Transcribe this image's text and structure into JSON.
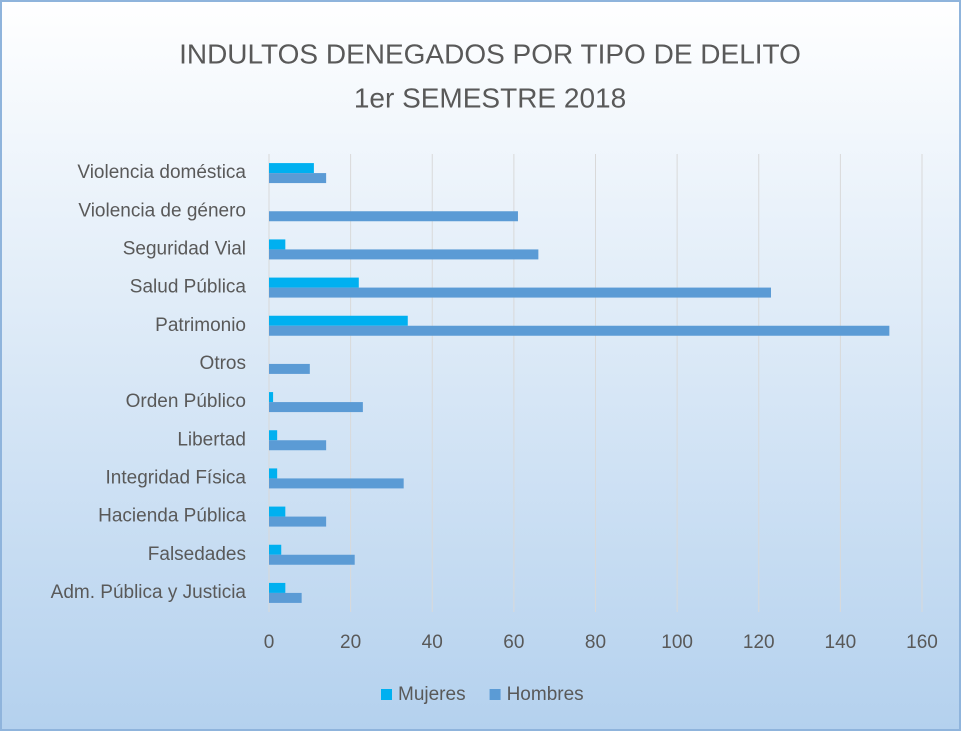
{
  "chart_data": {
    "type": "bar",
    "orientation": "horizontal",
    "title": "INDULTOS DENEGADOS POR TIPO DE DELITO",
    "subtitle": "1er SEMESTRE 2018",
    "categories": [
      "Violencia doméstica",
      "Violencia de género",
      "Seguridad Vial",
      "Salud Pública",
      "Patrimonio",
      "Otros",
      "Orden Público",
      "Libertad",
      "Integridad Física",
      "Hacienda Pública",
      "Falsedades",
      "Adm. Pública y Justicia"
    ],
    "series": [
      {
        "name": "Mujeres",
        "color": "#00b0f0",
        "values": [
          11,
          0,
          4,
          22,
          34,
          0,
          1,
          2,
          2,
          4,
          3,
          4
        ]
      },
      {
        "name": "Hombres",
        "color": "#5b9bd5",
        "values": [
          14,
          61,
          66,
          123,
          152,
          10,
          23,
          14,
          33,
          14,
          21,
          8
        ]
      }
    ],
    "xlim": [
      0,
      160
    ],
    "xticks": [
      0,
      20,
      40,
      60,
      80,
      100,
      120,
      140,
      160
    ],
    "grid": true,
    "legend": "bottom"
  }
}
